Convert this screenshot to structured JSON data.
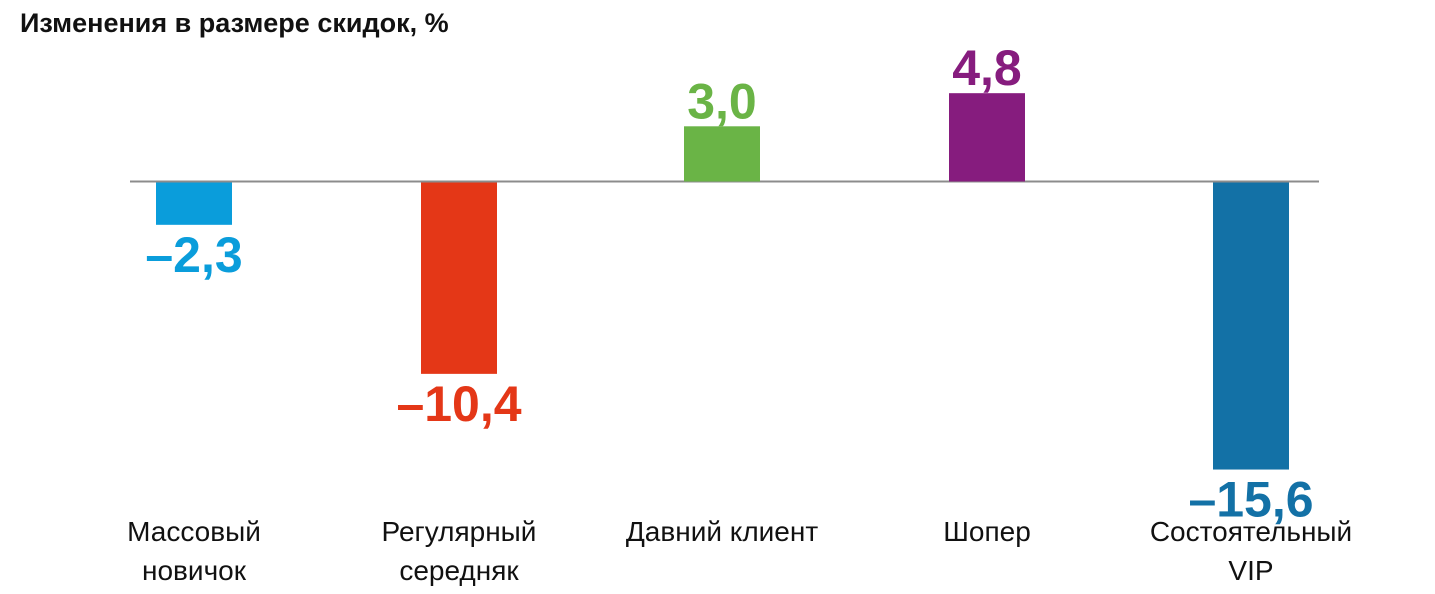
{
  "chart_data": {
    "type": "bar",
    "title": "Изменения в размере скидок, %",
    "categories": [
      [
        "Массовый",
        "новичок"
      ],
      [
        "Регулярный",
        "середняк"
      ],
      [
        "Давний клиент"
      ],
      [
        "Шопер"
      ],
      [
        "Состоятельный",
        "VIP"
      ]
    ],
    "values": [
      -2.3,
      -10.4,
      3.0,
      4.8,
      -15.6
    ],
    "value_labels": [
      "–2,3",
      "–10,4",
      "3,0",
      "4,8",
      "–15,6"
    ],
    "colors": [
      "#0a9ddb",
      "#e43717",
      "#6ab446",
      "#861c7e",
      "#1371a6"
    ],
    "axis_color": "#8c8c8c",
    "grid": false,
    "legend": "none",
    "xlabel": "",
    "ylabel": ""
  }
}
